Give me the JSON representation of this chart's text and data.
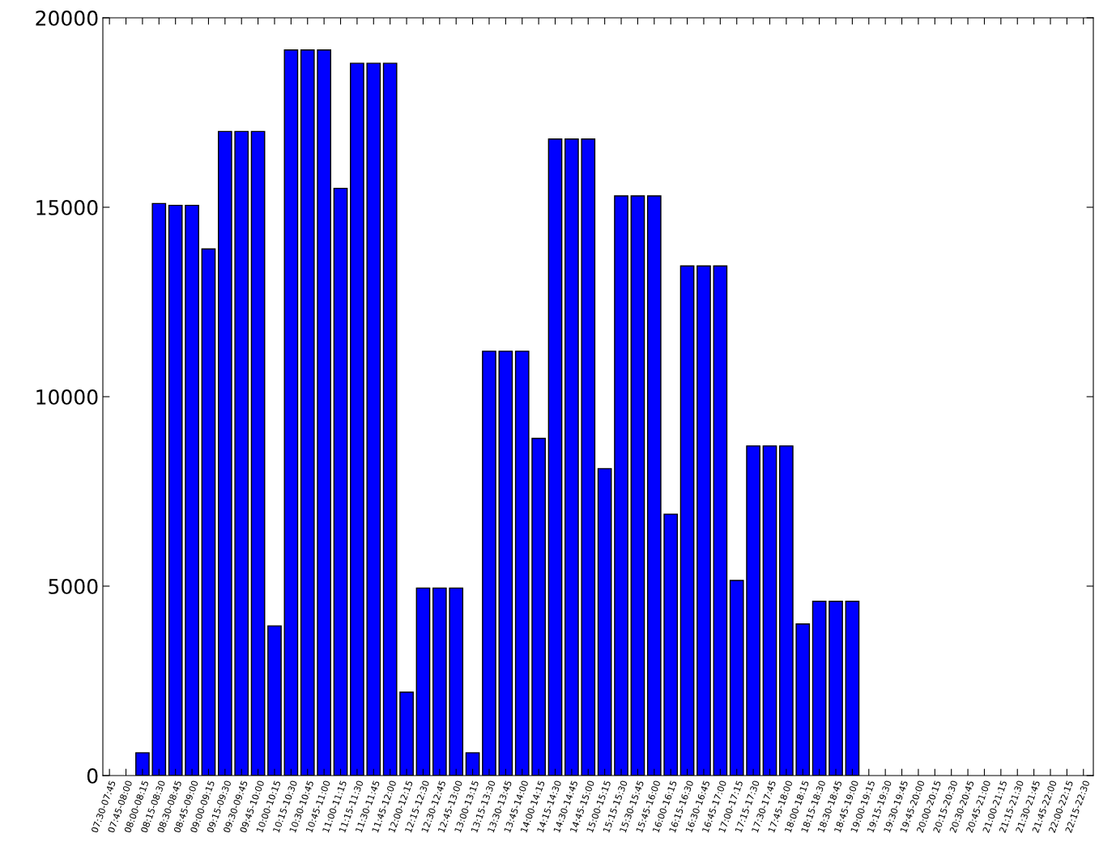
{
  "chart_data": {
    "type": "bar",
    "color": "#0000ff",
    "categories": [
      "07:30-07:45",
      "07:45-08:00",
      "08:00-08:15",
      "08:15-08:30",
      "08:30-08:45",
      "08:45-09:00",
      "09:00-09:15",
      "09:15-09:30",
      "09:30-09:45",
      "09:45-10:00",
      "10:00-10:15",
      "10:15-10:30",
      "10:30-10:45",
      "10:45-11:00",
      "11:00-11:15",
      "11:15-11:30",
      "11:30-11:45",
      "11:45-12:00",
      "12:00-12:15",
      "12:15-12:30",
      "12:30-12:45",
      "12:45-13:00",
      "13:00-13:15",
      "13:15-13:30",
      "13:30-13:45",
      "13:45-14:00",
      "14:00-14:15",
      "14:15-14:30",
      "14:30-14:45",
      "14:45-15:00",
      "15:00-15:15",
      "15:15-15:30",
      "15:30-15:45",
      "15:45-16:00",
      "16:00-16:15",
      "16:15-16:30",
      "16:30-16:45",
      "16:45-17:00",
      "17:00-17:15",
      "17:15-17:30",
      "17:30-17:45",
      "17:45-18:00",
      "18:00-18:15",
      "18:15-18:30",
      "18:30-18:45",
      "18:45-19:00",
      "19:00-19:15",
      "19:15-19:30",
      "19:30-19:45",
      "19:45-20:00",
      "20:00-20:15",
      "20:15-20:30",
      "20:30-20:45",
      "20:45-21:00",
      "21:00-21:15",
      "21:15-21:30",
      "21:30-21:45",
      "21:45-22:00",
      "22:00-22:15",
      "22:15-22:30"
    ],
    "values": [
      0,
      0,
      600,
      15100,
      15050,
      15050,
      13900,
      17000,
      17000,
      17000,
      3950,
      19150,
      19150,
      19150,
      15500,
      18800,
      18800,
      18800,
      2200,
      4950,
      4950,
      4950,
      600,
      11200,
      11200,
      11200,
      8900,
      16800,
      16800,
      16800,
      8100,
      15300,
      15300,
      15300,
      6900,
      13450,
      13450,
      13450,
      5150,
      8700,
      8700,
      8700,
      4000,
      4600,
      4600,
      4600,
      0,
      0,
      0,
      0,
      0,
      0,
      0,
      0,
      0,
      0,
      0,
      0,
      0,
      0
    ],
    "ylim": [
      0,
      20000
    ],
    "yticks": [
      0,
      5000,
      10000,
      15000,
      20000
    ],
    "grid": false,
    "legend": false
  }
}
